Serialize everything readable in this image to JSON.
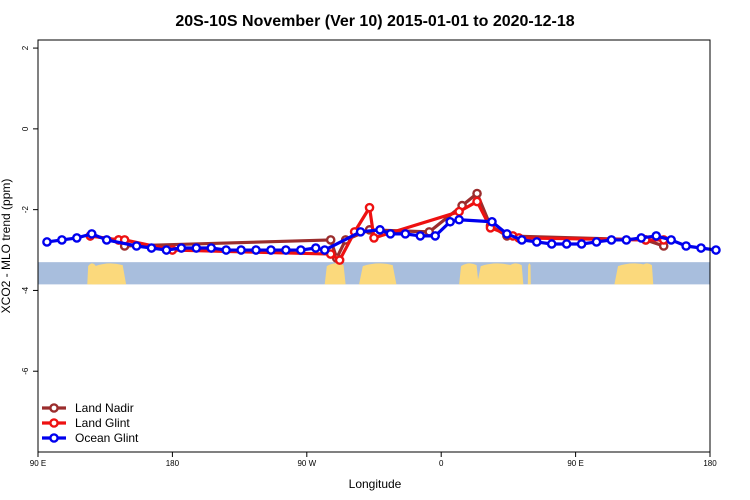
{
  "chart_data": {
    "type": "line",
    "title": "20S-10S November (Ver 10)   2015-01-01 to 2020-12-18",
    "xlabel": "Longitude",
    "ylabel": "XCO2 - MLO trend (ppm)",
    "xlim": [
      90,
      540
    ],
    "ylim": [
      -8,
      2.2
    ],
    "x_ticks": [
      {
        "value": 90,
        "label": "90 E"
      },
      {
        "value": 180,
        "label": "180"
      },
      {
        "value": 270,
        "label": "90 W"
      },
      {
        "value": 360,
        "label": "0"
      },
      {
        "value": 450,
        "label": "90 E"
      },
      {
        "value": 540,
        "label": "180"
      }
    ],
    "y_ticks": [
      {
        "value": 2,
        "label": "2"
      },
      {
        "value": 0,
        "label": "0"
      },
      {
        "value": -2,
        "label": "-2"
      },
      {
        "value": -4,
        "label": "-4"
      },
      {
        "value": -6,
        "label": "-6"
      }
    ],
    "land_band": {
      "ymin": -3.85,
      "ymax": -3.3,
      "ocean_color": "#a8bedd",
      "land_color": "#fbd97c"
    },
    "land_segments": [
      [
        123,
        129
      ],
      [
        126,
        149
      ],
      [
        282,
        296
      ],
      [
        305,
        330
      ],
      [
        372,
        385
      ],
      [
        384,
        409
      ],
      [
        404,
        415
      ],
      [
        418,
        420
      ],
      [
        476,
        500
      ],
      [
        493,
        502
      ]
    ],
    "series": [
      {
        "name": "Land Nadir",
        "color": "#9b2d2d",
        "points": [
          [
            125,
            -2.65
          ],
          [
            144,
            -2.75
          ],
          [
            148,
            -2.9
          ],
          [
            286,
            -2.75
          ],
          [
            290,
            -3.2
          ],
          [
            296,
            -2.75
          ],
          [
            312,
            -2.5
          ],
          [
            352,
            -2.55
          ],
          [
            374,
            -1.9
          ],
          [
            384,
            -1.6
          ],
          [
            393,
            -2.4
          ],
          [
            404,
            -2.65
          ],
          [
            497,
            -2.75
          ],
          [
            509,
            -2.9
          ]
        ]
      },
      {
        "name": "Land Glint",
        "color": "#ee1111",
        "points": [
          [
            125,
            -2.65
          ],
          [
            144,
            -2.75
          ],
          [
            148,
            -2.75
          ],
          [
            180,
            -3.0
          ],
          [
            286,
            -3.1
          ],
          [
            292,
            -3.25
          ],
          [
            302,
            -2.55
          ],
          [
            312,
            -1.95
          ],
          [
            315,
            -2.7
          ],
          [
            372,
            -2.05
          ],
          [
            384,
            -1.8
          ],
          [
            393,
            -2.45
          ],
          [
            408,
            -2.65
          ],
          [
            412,
            -2.7
          ],
          [
            497,
            -2.75
          ],
          [
            509,
            -2.75
          ]
        ]
      },
      {
        "name": "Ocean Glint",
        "color": "#0000ee",
        "points": [
          [
            96,
            -2.8
          ],
          [
            106,
            -2.75
          ],
          [
            116,
            -2.7
          ],
          [
            126,
            -2.6
          ],
          [
            136,
            -2.75
          ],
          [
            156,
            -2.9
          ],
          [
            166,
            -2.95
          ],
          [
            176,
            -3.0
          ],
          [
            186,
            -2.95
          ],
          [
            196,
            -2.95
          ],
          [
            206,
            -2.95
          ],
          [
            216,
            -3.0
          ],
          [
            226,
            -3.0
          ],
          [
            236,
            -3.0
          ],
          [
            246,
            -3.0
          ],
          [
            256,
            -3.0
          ],
          [
            266,
            -3.0
          ],
          [
            276,
            -2.95
          ],
          [
            282,
            -3.0
          ],
          [
            306,
            -2.55
          ],
          [
            319,
            -2.5
          ],
          [
            326,
            -2.6
          ],
          [
            336,
            -2.6
          ],
          [
            346,
            -2.65
          ],
          [
            356,
            -2.65
          ],
          [
            366,
            -2.3
          ],
          [
            372,
            -2.25
          ],
          [
            394,
            -2.3
          ],
          [
            404,
            -2.6
          ],
          [
            414,
            -2.75
          ],
          [
            424,
            -2.8
          ],
          [
            434,
            -2.85
          ],
          [
            444,
            -2.85
          ],
          [
            454,
            -2.85
          ],
          [
            464,
            -2.8
          ],
          [
            474,
            -2.75
          ],
          [
            484,
            -2.75
          ],
          [
            494,
            -2.7
          ],
          [
            504,
            -2.65
          ],
          [
            514,
            -2.75
          ],
          [
            524,
            -2.9
          ],
          [
            534,
            -2.95
          ],
          [
            544,
            -3.0
          ]
        ]
      }
    ],
    "legend": {
      "position": "bottom-left"
    }
  }
}
